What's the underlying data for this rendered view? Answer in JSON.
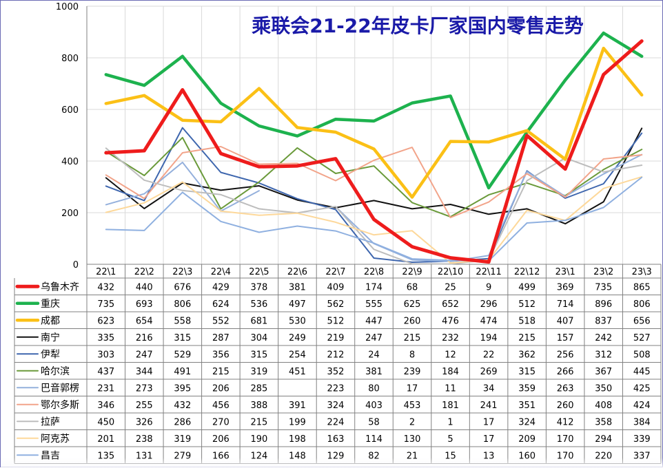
{
  "chart_data": {
    "type": "line",
    "title": "乘联会21-22年皮卡厂家国内零售走势",
    "ylim": [
      0,
      1000
    ],
    "yticks": [
      0,
      200,
      400,
      600,
      800,
      1000
    ],
    "grid": true,
    "legend_placement": "data-table-left",
    "categories": [
      "22\\1",
      "22\\2",
      "22\\3",
      "22\\4",
      "22\\5",
      "22\\6",
      "22\\7",
      "22\\8",
      "22\\9",
      "22\\10",
      "22\\11",
      "22\\12",
      "23\\1",
      "23\\2",
      "23\\3"
    ],
    "series": [
      {
        "name": "乌鲁木齐",
        "color": "#ee1c1c",
        "width": 5,
        "values": [
          432,
          440,
          676,
          429,
          378,
          381,
          409,
          174,
          68,
          25,
          9,
          499,
          369,
          735,
          865
        ]
      },
      {
        "name": "重庆",
        "color": "#1db24e",
        "width": 4.5,
        "values": [
          735,
          693,
          806,
          624,
          536,
          497,
          562,
          555,
          625,
          652,
          296,
          512,
          714,
          896,
          806
        ]
      },
      {
        "name": "成都",
        "color": "#fbc016",
        "width": 4.5,
        "values": [
          623,
          654,
          558,
          552,
          681,
          530,
          512,
          447,
          260,
          476,
          474,
          518,
          407,
          837,
          656
        ]
      },
      {
        "name": "南宁",
        "color": "#111111",
        "width": 2,
        "values": [
          335,
          216,
          315,
          287,
          304,
          249,
          219,
          247,
          215,
          232,
          194,
          215,
          157,
          242,
          527
        ]
      },
      {
        "name": "伊犁",
        "color": "#3e66ae",
        "width": 2,
        "values": [
          303,
          247,
          529,
          356,
          315,
          254,
          212,
          24,
          8,
          12,
          22,
          362,
          256,
          312,
          508
        ]
      },
      {
        "name": "哈尔滨",
        "color": "#6a9a3a",
        "width": 2,
        "values": [
          437,
          344,
          491,
          215,
          319,
          451,
          352,
          381,
          239,
          184,
          269,
          315,
          266,
          367,
          445
        ]
      },
      {
        "name": "巴音郭楞",
        "color": "#94b0dc",
        "width": 2,
        "values": [
          231,
          273,
          395,
          206,
          285,
          null,
          223,
          80,
          17,
          11,
          34,
          359,
          263,
          350,
          425
        ]
      },
      {
        "name": "鄂尔多斯",
        "color": "#f2a48a",
        "width": 2,
        "values": [
          346,
          255,
          432,
          456,
          388,
          391,
          324,
          403,
          453,
          181,
          241,
          351,
          260,
          408,
          424
        ]
      },
      {
        "name": "拉萨",
        "color": "#bdbdbd",
        "width": 2,
        "values": [
          450,
          326,
          286,
          270,
          215,
          199,
          224,
          58,
          2,
          1,
          17,
          324,
          412,
          358,
          384
        ]
      },
      {
        "name": "阿克苏",
        "color": "#fdd89a",
        "width": 2,
        "values": [
          201,
          238,
          319,
          206,
          190,
          198,
          163,
          114,
          130,
          5,
          17,
          209,
          170,
          294,
          339
        ]
      },
      {
        "name": "昌吉",
        "color": "#8fb0e0",
        "width": 2,
        "values": [
          135,
          131,
          279,
          166,
          124,
          148,
          129,
          82,
          21,
          15,
          13,
          160,
          170,
          220,
          337
        ]
      }
    ]
  }
}
